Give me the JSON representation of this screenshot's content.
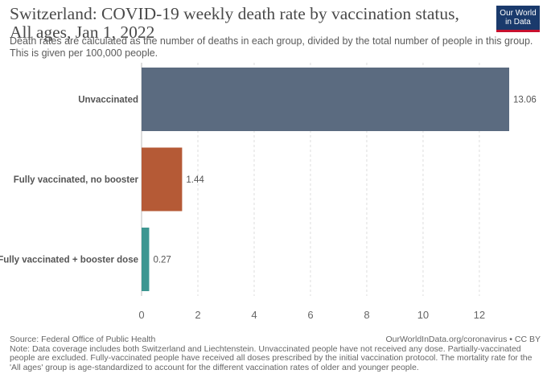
{
  "title": "Switzerland: COVID-19 weekly death rate by vaccination status, All ages, Jan 1, 2022",
  "subtitle": "Death rates are calculated as the number of deaths in each group, divided by the total number of people in this group. This is given per 100,000 people.",
  "logo": {
    "line1": "Our World",
    "line2": "in Data"
  },
  "footer": {
    "source": "Source: Federal Office of Public Health",
    "credit": "OurWorldInData.org/coronavirus • CC BY",
    "note": "Note: Data coverage includes both Switzerland and Liechtenstein. Unvaccinated people have not received any dose. Partially-vaccinated people are excluded. Fully-vaccinated people have received all doses prescribed by the initial vaccination protocol. The mortality rate for the 'All ages' group is age-standardized to account for the different vaccination rates of older and younger people."
  },
  "chart_data": {
    "type": "bar",
    "orientation": "horizontal",
    "title": "Switzerland: COVID-19 weekly death rate by vaccination status, All ages, Jan 1, 2022",
    "categories": [
      "Unvaccinated",
      "Fully vaccinated, no booster",
      "Fully vaccinated + booster dose"
    ],
    "values": [
      13.06,
      1.44,
      0.27
    ],
    "value_labels": [
      "13.06",
      "1.44",
      "0.27"
    ],
    "colors": [
      "#5b6b80",
      "#b55a36",
      "#3d9691"
    ],
    "xlim": [
      0,
      13.06
    ],
    "xticks": [
      0,
      2,
      4,
      6,
      8,
      10,
      12
    ],
    "grid": true,
    "xlabel": "",
    "ylabel": ""
  }
}
